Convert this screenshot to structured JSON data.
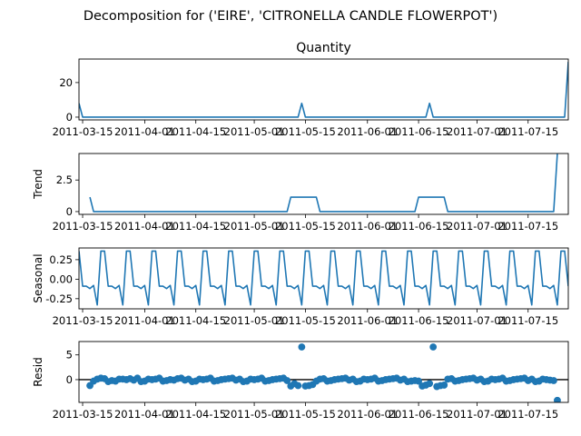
{
  "figure": {
    "suptitle": "Decomposition for ('EIRE', 'CITRONELLA CANDLE FLOWERPOT')"
  },
  "colors": {
    "line": "#1f77b4",
    "axis": "#000000",
    "background": "#ffffff"
  },
  "chart_data": [
    {
      "type": "line",
      "title": "Quantity",
      "ylabel": "",
      "xlim": [
        "2011-03-14",
        "2011-07-26"
      ],
      "ylim": [
        -1.6,
        33.6
      ],
      "yticks": [
        0,
        20
      ],
      "xticklabels": [
        "2011-03-15",
        "2011-04-01",
        "2011-04-15",
        "2011-05-01",
        "2011-05-15",
        "2011-06-01",
        "2011-06-15",
        "2011-07-01",
        "2011-07-15"
      ],
      "x": [
        "2011-03-14",
        "2011-03-15",
        "2011-05-13",
        "2011-05-14",
        "2011-05-15",
        "2011-06-17",
        "2011-06-18",
        "2011-06-19",
        "2011-07-25",
        "2011-07-26"
      ],
      "y": [
        8,
        0,
        0,
        8,
        0,
        0,
        8,
        0,
        0,
        32
      ]
    },
    {
      "type": "line",
      "title": "",
      "ylabel": "Trend",
      "xlim": [
        "2011-03-14",
        "2011-07-26"
      ],
      "ylim": [
        -0.22,
        4.6
      ],
      "yticks": [
        0,
        2.5
      ],
      "xticklabels": [
        "2011-03-15",
        "2011-04-01",
        "2011-04-15",
        "2011-05-01",
        "2011-05-15",
        "2011-06-01",
        "2011-06-15",
        "2011-07-01",
        "2011-07-15"
      ],
      "x": [
        "2011-03-17",
        "2011-03-18",
        "2011-05-10",
        "2011-05-11",
        "2011-05-18",
        "2011-05-19",
        "2011-06-14",
        "2011-06-15",
        "2011-06-22",
        "2011-06-23",
        "2011-07-22",
        "2011-07-23"
      ],
      "y": [
        1.14,
        0,
        0,
        1.14,
        1.14,
        0,
        0,
        1.14,
        1.14,
        0,
        0,
        4.57
      ]
    },
    {
      "type": "line",
      "title": "",
      "ylabel": "Seasonal",
      "xlim": [
        "2011-03-14",
        "2011-07-26"
      ],
      "ylim": [
        -0.38,
        0.4
      ],
      "yticks": [
        0.25,
        0.0,
        -0.25
      ],
      "xticklabels": [
        "2011-03-15",
        "2011-04-01",
        "2011-04-15",
        "2011-05-01",
        "2011-05-15",
        "2011-06-01",
        "2011-06-15",
        "2011-07-01",
        "2011-07-15"
      ],
      "period": 7,
      "start": "2011-03-14",
      "end": "2011-07-26",
      "pattern": [
        0.36,
        -0.09,
        -0.09,
        -0.12,
        -0.08,
        -0.33,
        0.36
      ]
    },
    {
      "type": "scatter",
      "title": "",
      "ylabel": "Resid",
      "xlim": [
        "2011-03-14",
        "2011-07-26"
      ],
      "ylim": [
        -4.6,
        7.7
      ],
      "yticks": [
        0,
        5
      ],
      "baseline": 0,
      "xticklabels": [
        "2011-03-15",
        "2011-04-01",
        "2011-04-15",
        "2011-05-01",
        "2011-05-15",
        "2011-06-01",
        "2011-06-15",
        "2011-07-01",
        "2011-07-15"
      ],
      "x": [
        "2011-03-17",
        "2011-03-18",
        "2011-03-19",
        "2011-03-20",
        "2011-03-21",
        "2011-03-22",
        "2011-03-23",
        "2011-03-24",
        "2011-03-25",
        "2011-03-26",
        "2011-03-27",
        "2011-03-28",
        "2011-03-29",
        "2011-03-30",
        "2011-03-31",
        "2011-04-01",
        "2011-04-02",
        "2011-04-03",
        "2011-04-04",
        "2011-04-05",
        "2011-04-06",
        "2011-04-07",
        "2011-04-08",
        "2011-04-09",
        "2011-04-10",
        "2011-04-11",
        "2011-04-12",
        "2011-04-13",
        "2011-04-14",
        "2011-04-15",
        "2011-04-16",
        "2011-04-17",
        "2011-04-18",
        "2011-04-19",
        "2011-04-20",
        "2011-04-21",
        "2011-04-22",
        "2011-04-23",
        "2011-04-24",
        "2011-04-25",
        "2011-04-26",
        "2011-04-27",
        "2011-04-28",
        "2011-04-29",
        "2011-04-30",
        "2011-05-01",
        "2011-05-02",
        "2011-05-03",
        "2011-05-04",
        "2011-05-05",
        "2011-05-06",
        "2011-05-07",
        "2011-05-08",
        "2011-05-09",
        "2011-05-10",
        "2011-05-11",
        "2011-05-12",
        "2011-05-13",
        "2011-05-14",
        "2011-05-15",
        "2011-05-16",
        "2011-05-17",
        "2011-05-18",
        "2011-05-19",
        "2011-05-20",
        "2011-05-21",
        "2011-05-22",
        "2011-05-23",
        "2011-05-24",
        "2011-05-25",
        "2011-05-26",
        "2011-05-27",
        "2011-05-28",
        "2011-05-29",
        "2011-05-30",
        "2011-05-31",
        "2011-06-01",
        "2011-06-02",
        "2011-06-03",
        "2011-06-04",
        "2011-06-05",
        "2011-06-06",
        "2011-06-07",
        "2011-06-08",
        "2011-06-09",
        "2011-06-10",
        "2011-06-11",
        "2011-06-12",
        "2011-06-13",
        "2011-06-14",
        "2011-06-15",
        "2011-06-16",
        "2011-06-17",
        "2011-06-18",
        "2011-06-19",
        "2011-06-20",
        "2011-06-21",
        "2011-06-22",
        "2011-06-23",
        "2011-06-24",
        "2011-06-25",
        "2011-06-26",
        "2011-06-27",
        "2011-06-28",
        "2011-06-29",
        "2011-06-30",
        "2011-07-01",
        "2011-07-02",
        "2011-07-03",
        "2011-07-04",
        "2011-07-05",
        "2011-07-06",
        "2011-07-07",
        "2011-07-08",
        "2011-07-09",
        "2011-07-10",
        "2011-07-11",
        "2011-07-12",
        "2011-07-13",
        "2011-07-14",
        "2011-07-15",
        "2011-07-16",
        "2011-07-17",
        "2011-07-18",
        "2011-07-19",
        "2011-07-20",
        "2011-07-21",
        "2011-07-22",
        "2011-07-23"
      ],
      "y": [
        -1.2,
        -0.3,
        0.1,
        0.3,
        0.2,
        -0.4,
        -0.2,
        -0.3,
        0.1,
        0.1,
        0.0,
        0.2,
        -0.1,
        0.3,
        -0.4,
        -0.3,
        0.1,
        0.0,
        0.1,
        0.3,
        -0.3,
        -0.2,
        0.0,
        -0.1,
        0.2,
        0.3,
        -0.1,
        0.1,
        -0.4,
        -0.3,
        0.1,
        0.0,
        0.1,
        0.3,
        -0.3,
        -0.2,
        0.0,
        0.1,
        0.2,
        0.3,
        -0.1,
        0.1,
        -0.4,
        -0.3,
        0.1,
        0.0,
        0.1,
        0.3,
        -0.3,
        -0.2,
        0.0,
        0.1,
        0.2,
        0.3,
        -0.2,
        -1.3,
        -0.8,
        -1.2,
        6.6,
        -1.3,
        -1.2,
        -1.0,
        -0.3,
        0.1,
        0.2,
        -0.3,
        -0.2,
        0.0,
        0.1,
        0.2,
        0.3,
        -0.1,
        0.1,
        -0.4,
        -0.3,
        0.1,
        0.0,
        0.1,
        0.3,
        -0.3,
        -0.2,
        0.0,
        0.1,
        0.2,
        0.3,
        -0.1,
        0.1,
        -0.4,
        -0.3,
        -0.2,
        -0.3,
        -1.3,
        -1.1,
        -0.8,
        6.6,
        -1.4,
        -1.2,
        -1.1,
        0.1,
        0.2,
        -0.3,
        -0.2,
        0.0,
        0.1,
        0.2,
        0.3,
        -0.1,
        0.1,
        -0.4,
        -0.3,
        0.1,
        0.0,
        0.1,
        0.3,
        -0.3,
        -0.2,
        0.0,
        0.1,
        0.2,
        0.3,
        -0.2,
        0.1,
        -0.4,
        -0.3,
        0.1,
        0.0,
        -0.1,
        -0.2,
        -4.2
      ]
    }
  ]
}
